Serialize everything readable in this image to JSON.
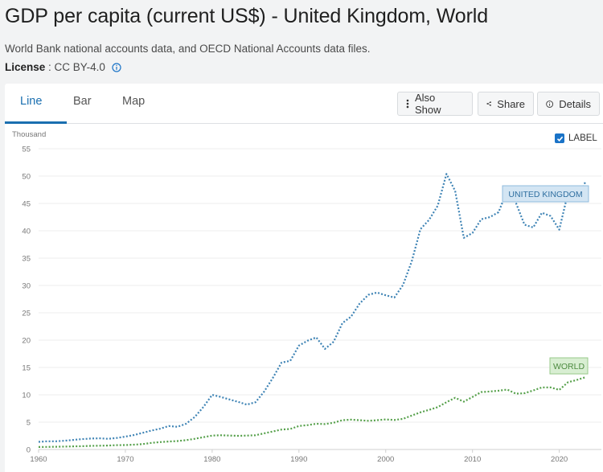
{
  "header": {
    "title": "GDP per capita (current US$) - United Kingdom, World",
    "source": "World Bank national accounts data, and OECD National Accounts data files.",
    "license_label": "License",
    "license_value": ": CC BY-4.0",
    "info_icon": "info-icon"
  },
  "tabs": [
    {
      "label": "Line",
      "active": true
    },
    {
      "label": "Bar",
      "active": false
    },
    {
      "label": "Map",
      "active": false
    }
  ],
  "toolbar": {
    "also_show": "Also Show",
    "share": "Share",
    "details": "Details"
  },
  "label_toggle": {
    "label": "LABEL",
    "checked": true
  },
  "colors": {
    "uk": "#3f84b5",
    "world": "#55a04a",
    "accent": "#1a6fb0"
  },
  "chart_data": {
    "type": "line",
    "unit_label": "Thousand",
    "ylim": [
      0,
      55
    ],
    "yticks": [
      0,
      5,
      10,
      15,
      20,
      25,
      30,
      35,
      40,
      45,
      50,
      55
    ],
    "xlim": [
      1960,
      2023
    ],
    "xticks": [
      1960,
      1970,
      1980,
      1990,
      2000,
      2010,
      2020
    ],
    "series": [
      {
        "name": "UNITED KINGDOM",
        "color": "#3f84b5",
        "x": [
          1960,
          1961,
          1962,
          1963,
          1964,
          1965,
          1966,
          1967,
          1968,
          1969,
          1970,
          1971,
          1972,
          1973,
          1974,
          1975,
          1976,
          1977,
          1978,
          1979,
          1980,
          1981,
          1982,
          1983,
          1984,
          1985,
          1986,
          1987,
          1988,
          1989,
          1990,
          1991,
          1992,
          1993,
          1994,
          1995,
          1996,
          1997,
          1998,
          1999,
          2000,
          2001,
          2002,
          2003,
          2004,
          2005,
          2006,
          2007,
          2008,
          2009,
          2010,
          2011,
          2012,
          2013,
          2014,
          2015,
          2016,
          2017,
          2018,
          2019,
          2020,
          2021,
          2022,
          2023
        ],
        "values": [
          1.4,
          1.5,
          1.5,
          1.6,
          1.75,
          1.9,
          2.0,
          2.05,
          1.95,
          2.1,
          2.35,
          2.65,
          3.05,
          3.45,
          3.8,
          4.3,
          4.15,
          4.7,
          5.95,
          7.8,
          10.0,
          9.6,
          9.15,
          8.7,
          8.2,
          8.65,
          10.6,
          13.1,
          15.9,
          16.2,
          19.0,
          19.9,
          20.5,
          18.4,
          19.7,
          23.1,
          24.3,
          26.7,
          28.3,
          28.7,
          28.2,
          27.8,
          30.1,
          34.4,
          40.3,
          42.0,
          44.6,
          50.4,
          47.3,
          38.7,
          39.6,
          42.1,
          42.5,
          43.4,
          47.4,
          45.1,
          41.1,
          40.6,
          43.3,
          42.7,
          40.2,
          46.9,
          45.6,
          48.9
        ]
      },
      {
        "name": "WORLD",
        "color": "#55a04a",
        "x": [
          1960,
          1961,
          1962,
          1963,
          1964,
          1965,
          1966,
          1967,
          1968,
          1969,
          1970,
          1971,
          1972,
          1973,
          1974,
          1975,
          1976,
          1977,
          1978,
          1979,
          1980,
          1981,
          1982,
          1983,
          1984,
          1985,
          1986,
          1987,
          1988,
          1989,
          1990,
          1991,
          1992,
          1993,
          1994,
          1995,
          1996,
          1997,
          1998,
          1999,
          2000,
          2001,
          2002,
          2003,
          2004,
          2005,
          2006,
          2007,
          2008,
          2009,
          2010,
          2011,
          2012,
          2013,
          2014,
          2015,
          2016,
          2017,
          2018,
          2019,
          2020,
          2021,
          2022,
          2023
        ],
        "values": [
          0.45,
          0.47,
          0.5,
          0.53,
          0.57,
          0.61,
          0.66,
          0.69,
          0.72,
          0.79,
          0.81,
          0.88,
          0.99,
          1.2,
          1.35,
          1.45,
          1.55,
          1.7,
          1.95,
          2.25,
          2.55,
          2.6,
          2.55,
          2.5,
          2.55,
          2.6,
          2.95,
          3.3,
          3.65,
          3.75,
          4.3,
          4.45,
          4.7,
          4.65,
          4.9,
          5.35,
          5.45,
          5.35,
          5.25,
          5.35,
          5.5,
          5.4,
          5.6,
          6.2,
          6.8,
          7.25,
          7.75,
          8.65,
          9.45,
          8.75,
          9.6,
          10.5,
          10.6,
          10.75,
          10.95,
          10.2,
          10.3,
          10.8,
          11.35,
          11.35,
          10.9,
          12.3,
          12.7,
          13.2
        ]
      }
    ]
  }
}
